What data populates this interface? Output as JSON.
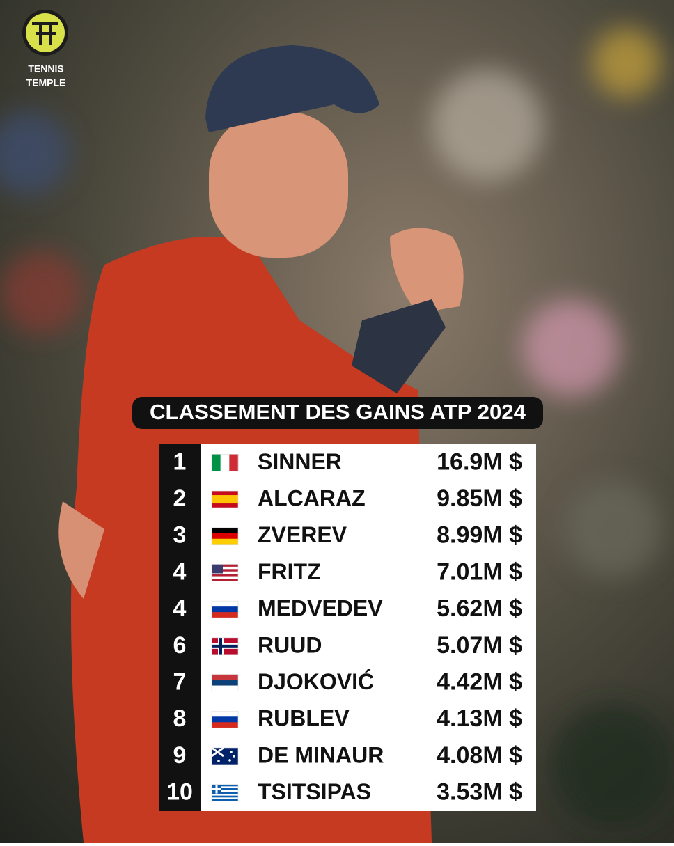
{
  "logo": {
    "line1": "TENNIS",
    "line2": "TEMPLE"
  },
  "title": "CLASSEMENT DES GAINS ATP 2024",
  "table": {
    "rows": [
      [
        "1",
        "SINNER",
        "16.9M $"
      ],
      [
        "2",
        "ALCARAZ",
        "9.85M $"
      ],
      [
        "3",
        "ZVEREV",
        "8.99M $"
      ],
      [
        "4",
        "FRITZ",
        "7.01M $"
      ],
      [
        "4",
        "MEDVEDEV",
        "5.62M $"
      ],
      [
        "6",
        "RUUD",
        "5.07M $"
      ],
      [
        "7",
        "DJOKOVIĆ",
        "4.42M $"
      ],
      [
        "8",
        "RUBLEV",
        "4.13M $"
      ],
      [
        "9",
        "DE MINAUR",
        "4.08M $"
      ],
      [
        "10",
        "TSITSIPAS",
        "3.53M $"
      ]
    ]
  }
}
